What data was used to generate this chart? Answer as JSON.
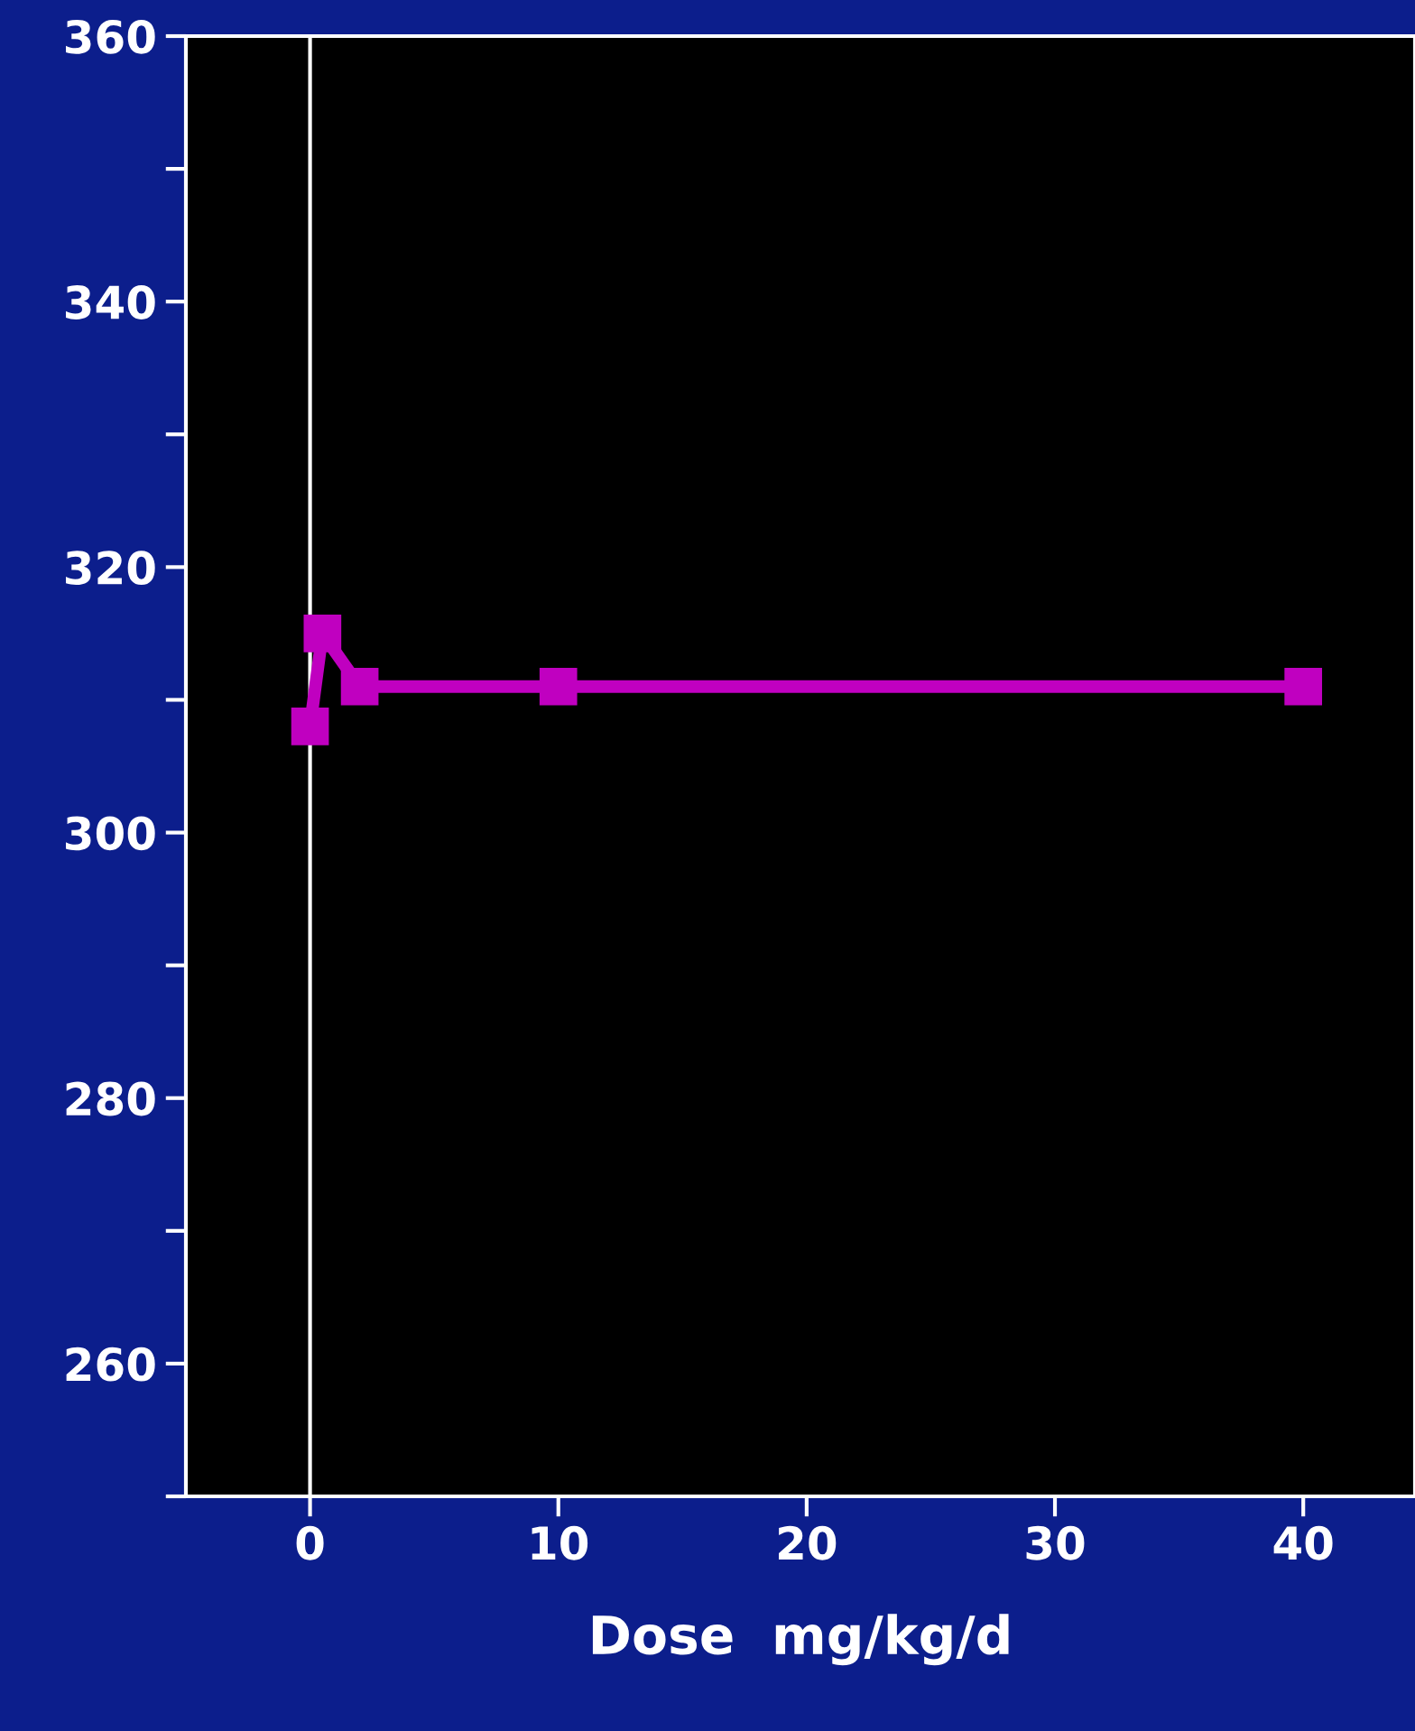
{
  "chart_data": {
    "type": "line",
    "xlabel": "Dose  mg/kg/d",
    "x": [
      0,
      0.5,
      2,
      10,
      40
    ],
    "series": [
      {
        "color": "#c000c0",
        "values": [
          308,
          315,
          311,
          311,
          311
        ]
      }
    ],
    "marker": "square",
    "line_style": "solid",
    "xlim": [
      -5,
      44.5
    ],
    "xticks": [
      0,
      10,
      20,
      30,
      40
    ],
    "ylim": [
      250,
      360
    ],
    "yticks": [
      {
        "value": 250,
        "label": null
      },
      {
        "value": 260,
        "label": "260"
      },
      {
        "value": 270,
        "label": null
      },
      {
        "value": 280,
        "label": "280"
      },
      {
        "value": 290,
        "label": null
      },
      {
        "value": 300,
        "label": "300"
      },
      {
        "value": 310,
        "label": null
      },
      {
        "value": 320,
        "label": "320"
      },
      {
        "value": 330,
        "label": null
      },
      {
        "value": 340,
        "label": "340"
      },
      {
        "value": 350,
        "label": null
      },
      {
        "value": 360,
        "label": "360"
      }
    ],
    "ref_lines": [
      {
        "axis": "x",
        "value": 0,
        "color": "#ffffff"
      }
    ],
    "grid": false,
    "legend": false
  }
}
